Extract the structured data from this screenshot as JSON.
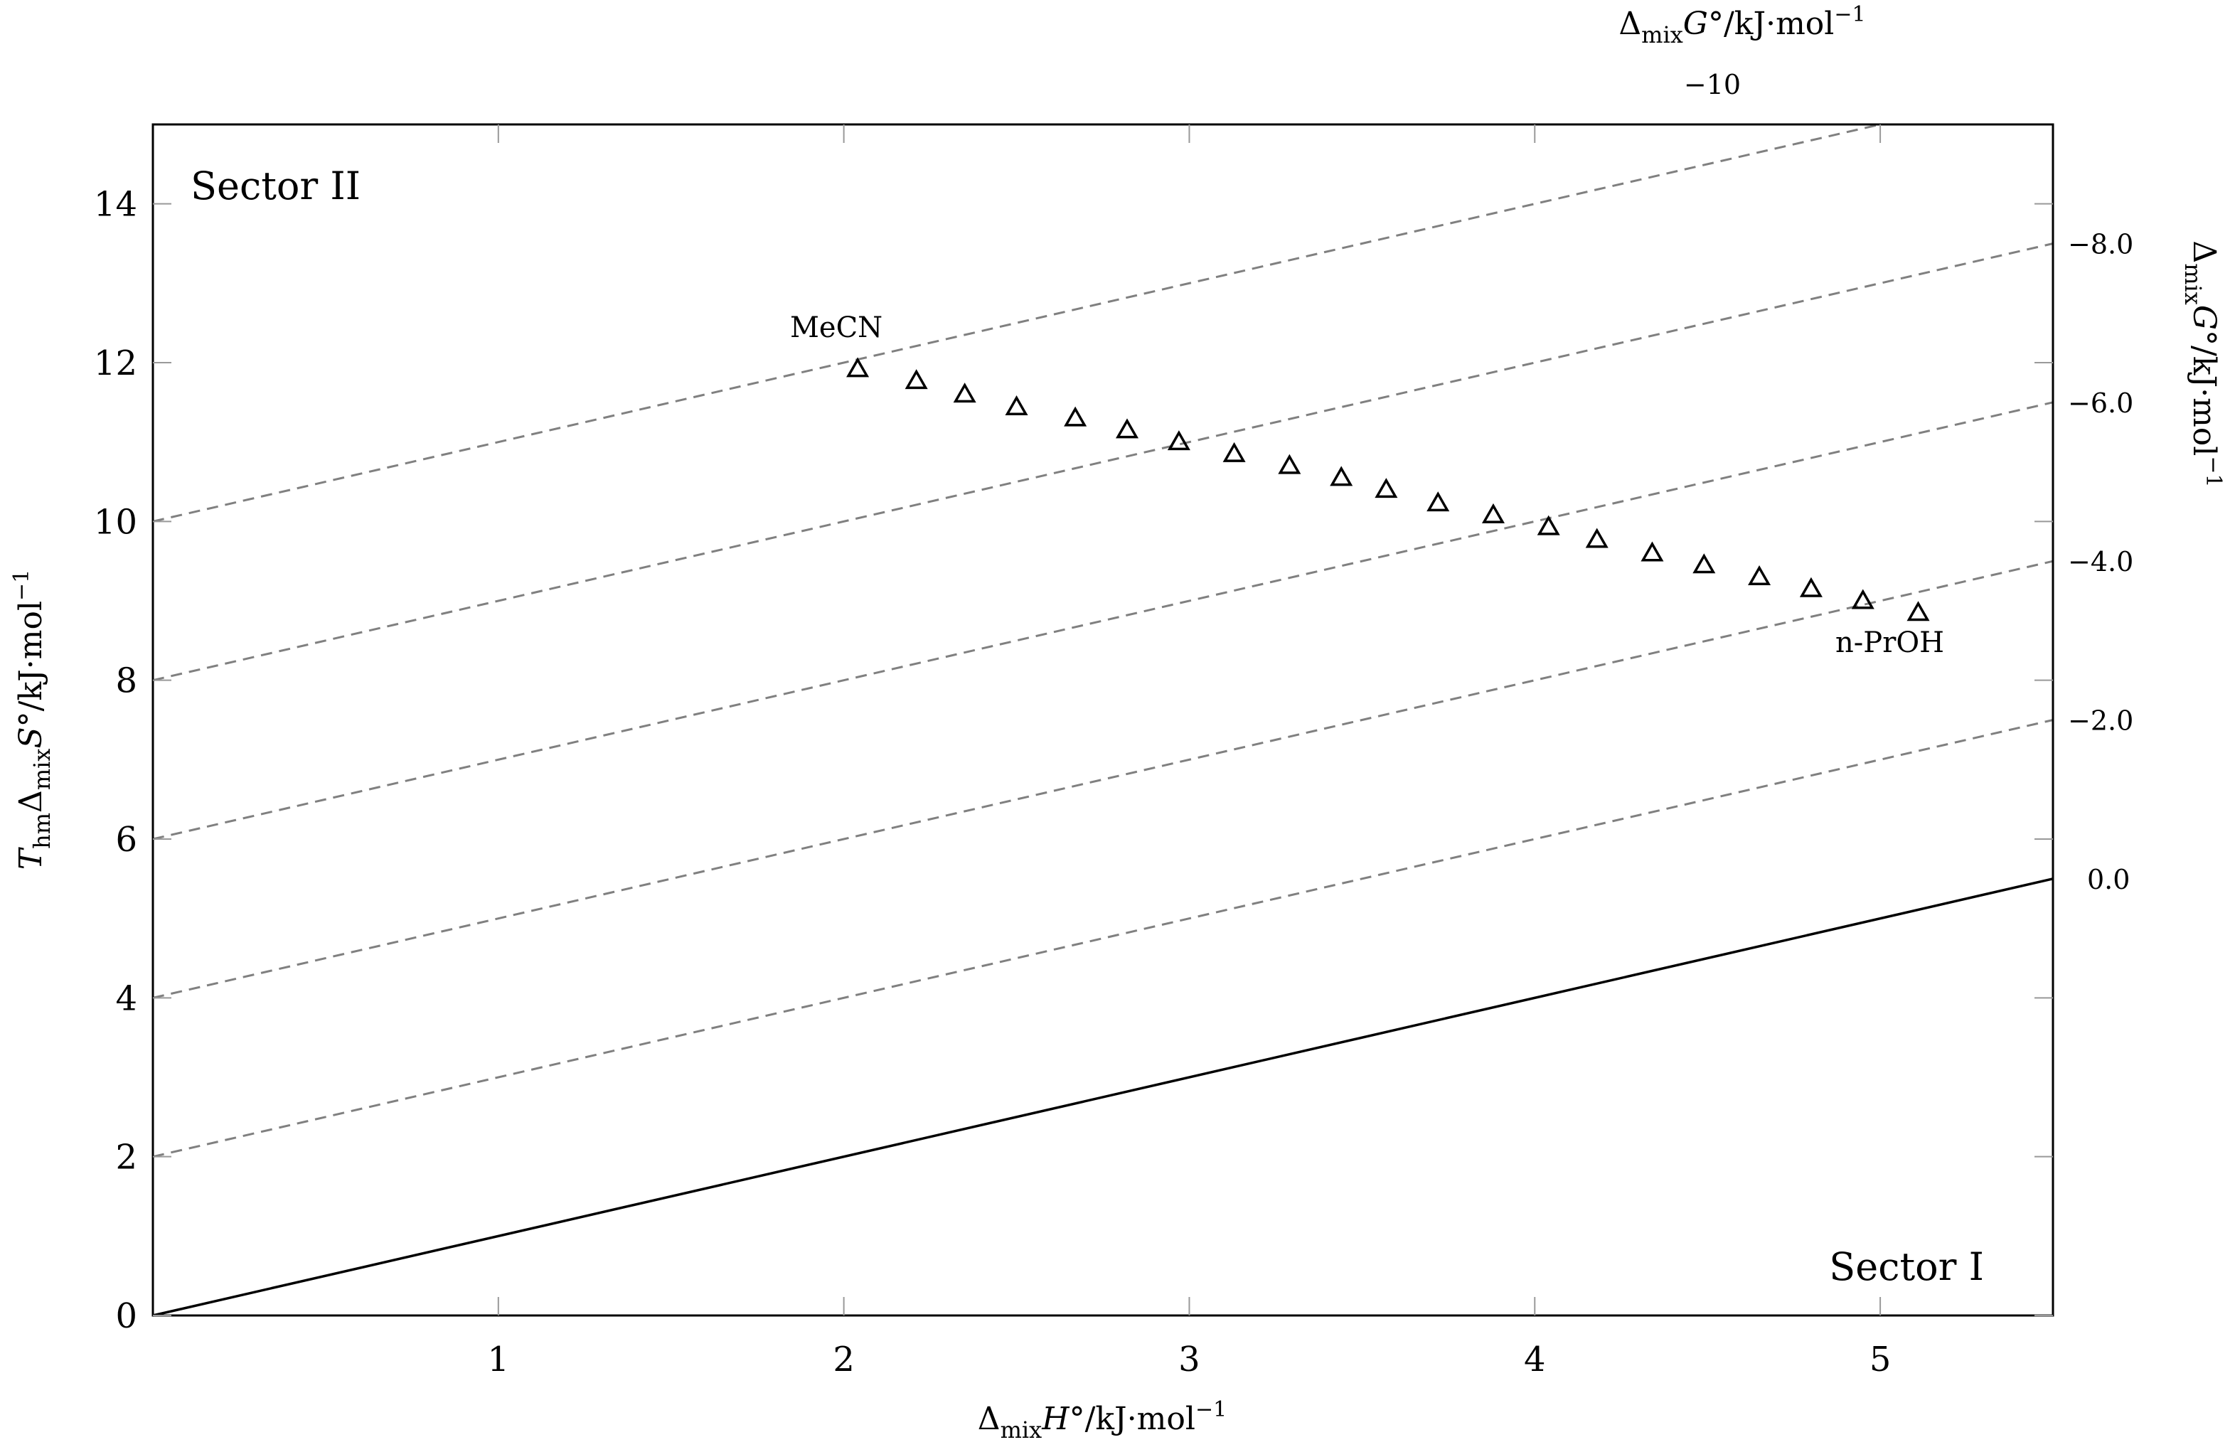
{
  "chart_data": {
    "type": "scatter",
    "xlabel": "Δ_mix H°/kJ·mol⁻¹",
    "ylabel": "T_hm Δ_mix S°/kJ·mol⁻¹",
    "y2label": "Δ_mix G°/kJ·mol⁻¹",
    "x2label": "Δ_mix G°/kJ·mol⁻¹",
    "xlim": [
      0,
      5.5
    ],
    "ylim": [
      0,
      15
    ],
    "x_ticks": [
      1,
      2,
      3,
      4,
      5
    ],
    "y_ticks": [
      0,
      2,
      4,
      6,
      8,
      10,
      12,
      14
    ],
    "right_ticks": [
      {
        "y": 5.5,
        "label": "0.0"
      },
      {
        "y": 7.5,
        "label": "−2.0"
      },
      {
        "y": 9.5,
        "label": "−4.0"
      },
      {
        "y": 11.5,
        "label": "−6.0"
      },
      {
        "y": 13.5,
        "label": "−8.0"
      }
    ],
    "top_tick": {
      "label": "−10"
    },
    "reference_line": {
      "name": "ΔG = 0",
      "slope": 1,
      "intercept": 0,
      "style": "solid"
    },
    "iso_g_lines": [
      {
        "delta_g": -2,
        "intercept": 2
      },
      {
        "delta_g": -4,
        "intercept": 4
      },
      {
        "delta_g": -6,
        "intercept": 6
      },
      {
        "delta_g": -8,
        "intercept": 8
      },
      {
        "delta_g": -10,
        "intercept": 10
      }
    ],
    "series": [
      {
        "marker": "triangle",
        "points": [
          [
            2.04,
            11.92
          ],
          [
            2.21,
            11.77
          ],
          [
            2.35,
            11.6
          ],
          [
            2.5,
            11.44
          ],
          [
            2.67,
            11.3
          ],
          [
            2.82,
            11.15
          ],
          [
            2.97,
            11.0
          ],
          [
            3.13,
            10.85
          ],
          [
            3.29,
            10.7
          ],
          [
            3.44,
            10.55
          ],
          [
            3.57,
            10.4
          ],
          [
            3.72,
            10.23
          ],
          [
            3.88,
            10.08
          ],
          [
            4.04,
            9.93
          ],
          [
            4.18,
            9.77
          ],
          [
            4.34,
            9.6
          ],
          [
            4.49,
            9.45
          ],
          [
            4.65,
            9.3
          ],
          [
            4.8,
            9.15
          ],
          [
            4.95,
            9.0
          ],
          [
            5.11,
            8.85
          ]
        ]
      }
    ],
    "annotations": [
      {
        "text": "Sector II",
        "anchor": "top-left"
      },
      {
        "text": "Sector I",
        "anchor": "bottom-right"
      },
      {
        "text": "MeCN",
        "near_point": 0
      },
      {
        "text": "n-PrOH",
        "near_point": 20
      }
    ]
  }
}
